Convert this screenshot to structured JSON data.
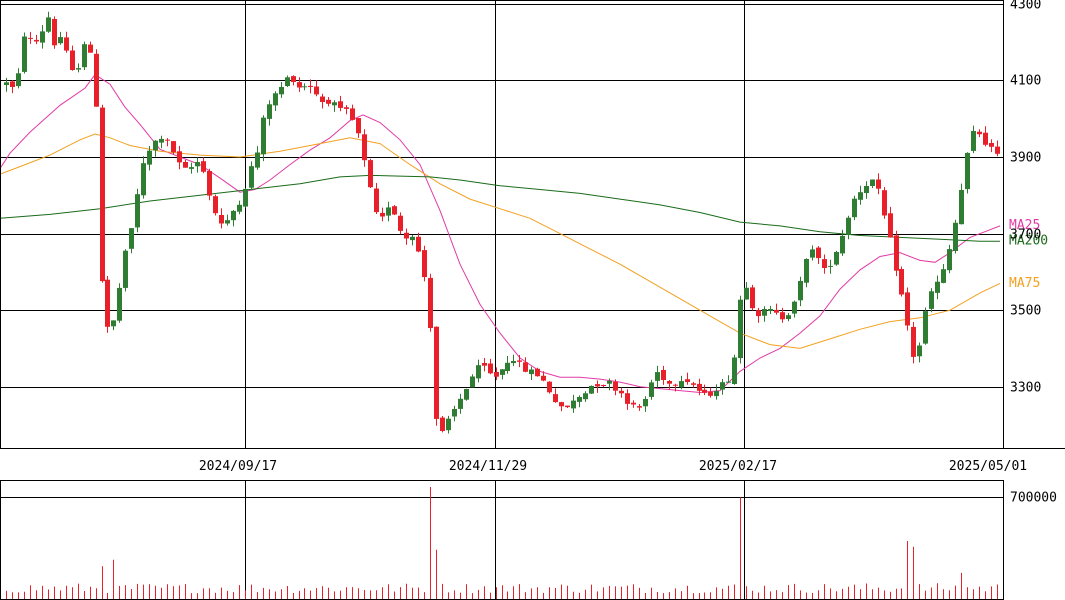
{
  "chart_data": {
    "type": "candlestick",
    "price_axis": {
      "ylim": [
        3140,
        4310
      ],
      "ticks": [
        4300,
        4100,
        3900,
        3700,
        3500,
        3300
      ],
      "tick_labels": [
        "4300",
        "4100",
        "3900",
        "3700",
        "3500",
        "3300"
      ]
    },
    "volume_axis": {
      "ylim": [
        0,
        820000
      ],
      "ticks": [
        700000
      ],
      "tick_labels": [
        "700000"
      ]
    },
    "x_axis": {
      "date_labels": [
        "2024/09/17",
        "2024/11/29",
        "2025/02/17",
        "2025/05/01"
      ]
    },
    "colors": {
      "up": "#2e7d32",
      "down": "#e8202a",
      "ma25": "#e23aa5",
      "ma75": "#f2a020",
      "ma200": "#1a6b1a",
      "volume": "#e8202a",
      "grid": "#000000"
    },
    "moving_averages": [
      {
        "name": "MA25",
        "color": "#e23aa5",
        "points": [
          [
            0,
            3870
          ],
          [
            10,
            3910
          ],
          [
            30,
            3965
          ],
          [
            60,
            4035
          ],
          [
            85,
            4080
          ],
          [
            95,
            4115
          ],
          [
            110,
            4090
          ],
          [
            125,
            4030
          ],
          [
            140,
            3985
          ],
          [
            160,
            3920
          ],
          [
            180,
            3900
          ],
          [
            200,
            3880
          ],
          [
            220,
            3845
          ],
          [
            240,
            3808
          ],
          [
            255,
            3815
          ],
          [
            270,
            3840
          ],
          [
            290,
            3880
          ],
          [
            310,
            3918
          ],
          [
            330,
            3950
          ],
          [
            350,
            3995
          ],
          [
            363,
            4010
          ],
          [
            380,
            3990
          ],
          [
            400,
            3945
          ],
          [
            420,
            3880
          ],
          [
            440,
            3760
          ],
          [
            460,
            3620
          ],
          [
            480,
            3515
          ],
          [
            500,
            3440
          ],
          [
            520,
            3375
          ],
          [
            540,
            3340
          ],
          [
            560,
            3325
          ],
          [
            580,
            3325
          ],
          [
            600,
            3320
          ],
          [
            620,
            3312
          ],
          [
            640,
            3300
          ],
          [
            660,
            3295
          ],
          [
            680,
            3290
          ],
          [
            700,
            3285
          ],
          [
            720,
            3290
          ],
          [
            740,
            3340
          ],
          [
            760,
            3375
          ],
          [
            780,
            3400
          ],
          [
            800,
            3440
          ],
          [
            820,
            3485
          ],
          [
            840,
            3555
          ],
          [
            860,
            3605
          ],
          [
            880,
            3640
          ],
          [
            900,
            3650
          ],
          [
            920,
            3630
          ],
          [
            935,
            3625
          ],
          [
            950,
            3650
          ],
          [
            970,
            3690
          ],
          [
            985,
            3705
          ],
          [
            1000,
            3720
          ]
        ]
      },
      {
        "name": "MA75",
        "color": "#f2a020",
        "points": [
          [
            0,
            3855
          ],
          [
            20,
            3875
          ],
          [
            50,
            3905
          ],
          [
            80,
            3945
          ],
          [
            95,
            3960
          ],
          [
            110,
            3950
          ],
          [
            130,
            3930
          ],
          [
            160,
            3915
          ],
          [
            200,
            3905
          ],
          [
            240,
            3900
          ],
          [
            280,
            3915
          ],
          [
            320,
            3935
          ],
          [
            350,
            3950
          ],
          [
            380,
            3935
          ],
          [
            410,
            3880
          ],
          [
            440,
            3830
          ],
          [
            470,
            3790
          ],
          [
            500,
            3765
          ],
          [
            530,
            3740
          ],
          [
            560,
            3700
          ],
          [
            590,
            3660
          ],
          [
            620,
            3620
          ],
          [
            650,
            3575
          ],
          [
            680,
            3530
          ],
          [
            710,
            3485
          ],
          [
            740,
            3440
          ],
          [
            770,
            3410
          ],
          [
            800,
            3400
          ],
          [
            830,
            3425
          ],
          [
            860,
            3450
          ],
          [
            890,
            3470
          ],
          [
            920,
            3480
          ],
          [
            950,
            3500
          ],
          [
            980,
            3545
          ],
          [
            1000,
            3570
          ]
        ]
      },
      {
        "name": "MA200",
        "color": "#1a6b1a",
        "points": [
          [
            0,
            3740
          ],
          [
            50,
            3750
          ],
          [
            100,
            3765
          ],
          [
            150,
            3785
          ],
          [
            200,
            3800
          ],
          [
            250,
            3815
          ],
          [
            300,
            3830
          ],
          [
            340,
            3848
          ],
          [
            370,
            3852
          ],
          [
            400,
            3850
          ],
          [
            430,
            3848
          ],
          [
            460,
            3840
          ],
          [
            500,
            3825
          ],
          [
            540,
            3815
          ],
          [
            580,
            3805
          ],
          [
            620,
            3790
          ],
          [
            660,
            3775
          ],
          [
            700,
            3755
          ],
          [
            740,
            3730
          ],
          [
            780,
            3720
          ],
          [
            820,
            3705
          ],
          [
            860,
            3695
          ],
          [
            900,
            3690
          ],
          [
            940,
            3685
          ],
          [
            980,
            3680
          ],
          [
            1000,
            3680
          ]
        ]
      }
    ],
    "ma_labels": [
      {
        "text": "MA25",
        "price": 3722,
        "color": "#e23aa5"
      },
      {
        "text": "MA200",
        "price": 3682,
        "color": "#1a6b1a"
      },
      {
        "text": "MA75",
        "price": 3571,
        "color": "#f2a020"
      }
    ],
    "volume_spikes": [
      {
        "x": 100,
        "v": 225000
      },
      {
        "x": 113,
        "v": 270000
      },
      {
        "x": 432,
        "v": 772000
      },
      {
        "x": 438,
        "v": 340000
      },
      {
        "x": 738,
        "v": 700000
      },
      {
        "x": 742,
        "v": 700000
      },
      {
        "x": 908,
        "v": 400000
      },
      {
        "x": 914,
        "v": 360000
      },
      {
        "x": 960,
        "v": 180000
      }
    ],
    "anchors": [
      [
        0,
        4080
      ],
      [
        8,
        4105
      ],
      [
        15,
        4060
      ],
      [
        20,
        4150
      ],
      [
        25,
        4240
      ],
      [
        32,
        4190
      ],
      [
        40,
        4215
      ],
      [
        47,
        4275
      ],
      [
        55,
        4180
      ],
      [
        62,
        4230
      ],
      [
        67,
        4150
      ],
      [
        75,
        4100
      ],
      [
        80,
        4175
      ],
      [
        86,
        4215
      ],
      [
        92,
        4130
      ],
      [
        97,
        4000
      ],
      [
        101,
        3600
      ],
      [
        104,
        3480
      ],
      [
        110,
        3440
      ],
      [
        117,
        3500
      ],
      [
        122,
        3620
      ],
      [
        127,
        3660
      ],
      [
        132,
        3720
      ],
      [
        137,
        3800
      ],
      [
        142,
        3870
      ],
      [
        148,
        3910
      ],
      [
        154,
        3935
      ],
      [
        160,
        3955
      ],
      [
        166,
        3940
      ],
      [
        172,
        3920
      ],
      [
        180,
        3875
      ],
      [
        188,
        3860
      ],
      [
        195,
        3890
      ],
      [
        202,
        3880
      ],
      [
        207,
        3820
      ],
      [
        212,
        3770
      ],
      [
        218,
        3740
      ],
      [
        224,
        3710
      ],
      [
        230,
        3750
      ],
      [
        236,
        3770
      ],
      [
        242,
        3800
      ],
      [
        248,
        3850
      ],
      [
        253,
        3890
      ],
      [
        258,
        3920
      ],
      [
        262,
        3990
      ],
      [
        268,
        4040
      ],
      [
        274,
        4060
      ],
      [
        280,
        4080
      ],
      [
        285,
        4100
      ],
      [
        290,
        4115
      ],
      [
        296,
        4090
      ],
      [
        302,
        4075
      ],
      [
        307,
        4100
      ],
      [
        312,
        4080
      ],
      [
        318,
        4060
      ],
      [
        324,
        4040
      ],
      [
        330,
        4050
      ],
      [
        336,
        4030
      ],
      [
        342,
        4015
      ],
      [
        348,
        4020
      ],
      [
        353,
        3990
      ],
      [
        358,
        3960
      ],
      [
        363,
        3900
      ],
      [
        368,
        3840
      ],
      [
        373,
        3780
      ],
      [
        378,
        3730
      ],
      [
        383,
        3740
      ],
      [
        389,
        3780
      ],
      [
        395,
        3750
      ],
      [
        400,
        3710
      ],
      [
        406,
        3690
      ],
      [
        412,
        3700
      ],
      [
        418,
        3650
      ],
      [
        423,
        3600
      ],
      [
        428,
        3530
      ],
      [
        432,
        3380
      ],
      [
        436,
        3210
      ],
      [
        441,
        3175
      ],
      [
        446,
        3200
      ],
      [
        452,
        3230
      ],
      [
        458,
        3260
      ],
      [
        464,
        3290
      ],
      [
        470,
        3320
      ],
      [
        476,
        3345
      ],
      [
        482,
        3355
      ],
      [
        488,
        3335
      ],
      [
        494,
        3325
      ],
      [
        500,
        3340
      ],
      [
        506,
        3365
      ],
      [
        512,
        3380
      ],
      [
        518,
        3360
      ],
      [
        524,
        3345
      ],
      [
        530,
        3340
      ],
      [
        536,
        3335
      ],
      [
        542,
        3320
      ],
      [
        548,
        3295
      ],
      [
        554,
        3270
      ],
      [
        560,
        3240
      ],
      [
        565,
        3245
      ],
      [
        571,
        3255
      ],
      [
        577,
        3270
      ],
      [
        583,
        3280
      ],
      [
        589,
        3300
      ],
      [
        595,
        3310
      ],
      [
        601,
        3305
      ],
      [
        607,
        3315
      ],
      [
        613,
        3300
      ],
      [
        619,
        3290
      ],
      [
        625,
        3270
      ],
      [
        631,
        3250
      ],
      [
        637,
        3240
      ],
      [
        643,
        3255
      ],
      [
        649,
        3300
      ],
      [
        655,
        3340
      ],
      [
        661,
        3330
      ],
      [
        667,
        3310
      ],
      [
        673,
        3305
      ],
      [
        679,
        3325
      ],
      [
        685,
        3320
      ],
      [
        691,
        3310
      ],
      [
        697,
        3295
      ],
      [
        703,
        3275
      ],
      [
        709,
        3280
      ],
      [
        715,
        3295
      ],
      [
        721,
        3305
      ],
      [
        727,
        3310
      ],
      [
        733,
        3360
      ],
      [
        738,
        3430
      ],
      [
        742,
        3600
      ],
      [
        746,
        3570
      ],
      [
        751,
        3520
      ],
      [
        757,
        3490
      ],
      [
        763,
        3495
      ],
      [
        769,
        3500
      ],
      [
        775,
        3490
      ],
      [
        781,
        3480
      ],
      [
        787,
        3490
      ],
      [
        793,
        3520
      ],
      [
        799,
        3560
      ],
      [
        805,
        3620
      ],
      [
        811,
        3670
      ],
      [
        817,
        3640
      ],
      [
        823,
        3600
      ],
      [
        829,
        3620
      ],
      [
        835,
        3650
      ],
      [
        841,
        3690
      ],
      [
        847,
        3740
      ],
      [
        853,
        3790
      ],
      [
        859,
        3810
      ],
      [
        865,
        3830
      ],
      [
        871,
        3840
      ],
      [
        877,
        3815
      ],
      [
        883,
        3750
      ],
      [
        888,
        3700
      ],
      [
        893,
        3640
      ],
      [
        898,
        3580
      ],
      [
        903,
        3520
      ],
      [
        908,
        3450
      ],
      [
        913,
        3380
      ],
      [
        918,
        3390
      ],
      [
        923,
        3460
      ],
      [
        928,
        3530
      ],
      [
        934,
        3560
      ],
      [
        940,
        3580
      ],
      [
        946,
        3620
      ],
      [
        952,
        3690
      ],
      [
        958,
        3760
      ],
      [
        964,
        3860
      ],
      [
        969,
        3930
      ],
      [
        974,
        3970
      ],
      [
        980,
        3960
      ],
      [
        986,
        3935
      ],
      [
        992,
        3920
      ],
      [
        997,
        3900
      ]
    ],
    "n_candles": 167
  }
}
